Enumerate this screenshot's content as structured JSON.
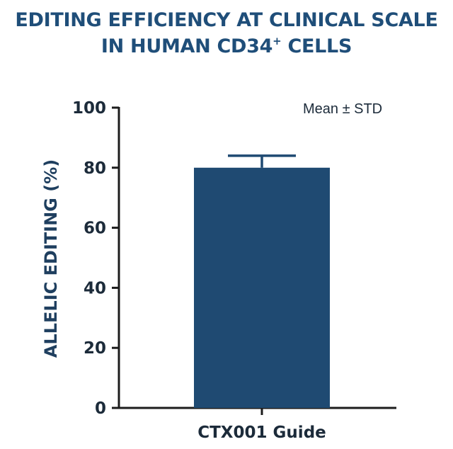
{
  "chart_data": {
    "type": "bar",
    "title_line1": "EDITING EFFICIENCY AT CLINICAL SCALE",
    "title_line2": "IN HUMAN CD34",
    "title_sup": "+",
    "title_line2_end": " CELLS",
    "ylabel": "ALLELIC EDITING (%)",
    "xlabel": "",
    "annotation": "Mean ± STD",
    "ylim": [
      0,
      100
    ],
    "yticks": [
      "0",
      "20",
      "40",
      "60",
      "80",
      "100"
    ],
    "categories": [
      "CTX001 Guide"
    ],
    "values": [
      80
    ],
    "error_std": [
      4
    ],
    "bar_color": "#1f4a72",
    "axis_color": "#1c1c1c",
    "title_color": "#1f4e79"
  }
}
